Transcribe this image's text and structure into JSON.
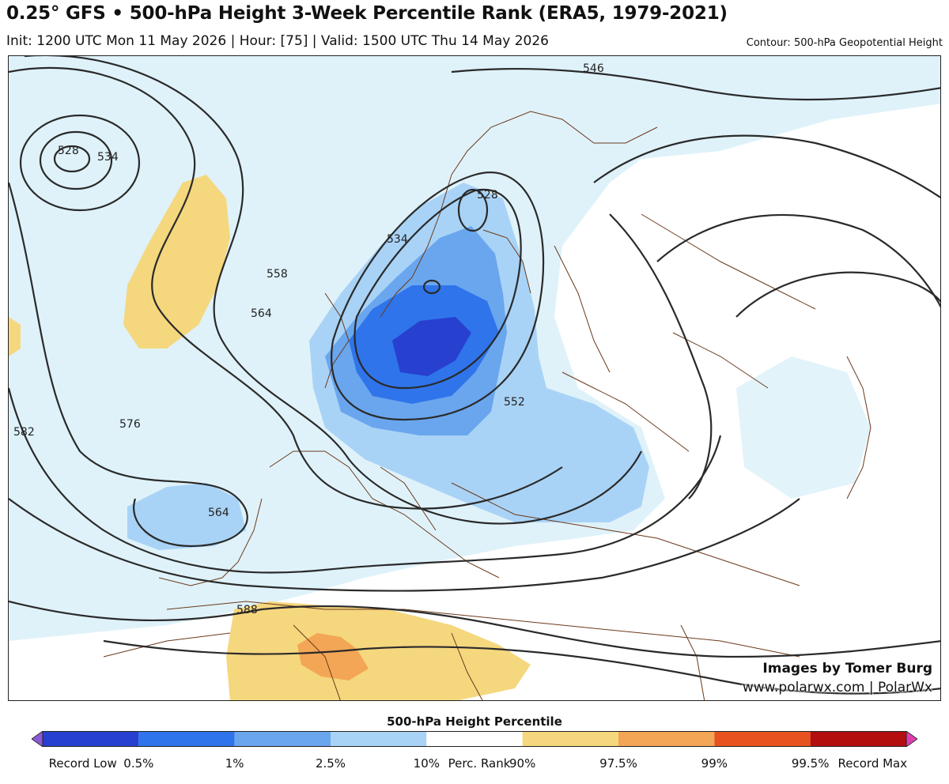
{
  "header": {
    "title": "0.25° GFS • 500-hPa Height 3-Week Percentile Rank (ERA5, 1979-2021)",
    "subtitle": "Init: 1200 UTC Mon 11 May 2026 | Hour: [75] | Valid: 1500 UTC Thu 14 May 2026",
    "contour_note": "Contour: 500-hPa Geopotential Height"
  },
  "map": {
    "contour_labels": [
      "528",
      "534",
      "546",
      "558",
      "564",
      "576",
      "582",
      "564",
      "528",
      "534",
      "552",
      "588"
    ],
    "credit_line1": "Images by Tomer Burg",
    "credit_line2": "www.polarwx.com | PolarWx"
  },
  "colorbar": {
    "title": "500-hPa Height Percentile",
    "labels": [
      "Record Low",
      "0.5%",
      "1%",
      "2.5%",
      "10%",
      "Perc. Rank",
      "90%",
      "97.5%",
      "99%",
      "99.5%",
      "Record Max"
    ],
    "colors": [
      "#8a5bd6",
      "#2740cf",
      "#2f74ea",
      "#6aa6ee",
      "#a9d3f6",
      "#ffffff",
      "#f5d77e",
      "#f3a655",
      "#e8521f",
      "#b30f0f",
      "#dd3fb0"
    ]
  },
  "colors": {
    "low_light": "#dff2fa",
    "p10": "#a9d3f6",
    "p2_5": "#6aa6ee",
    "p1": "#2f74ea",
    "p0_5": "#2740cf",
    "p90": "#f5d77e",
    "p97_5": "#f3a655",
    "border": "#6b3a1c",
    "contour": "#2a2a2a"
  }
}
